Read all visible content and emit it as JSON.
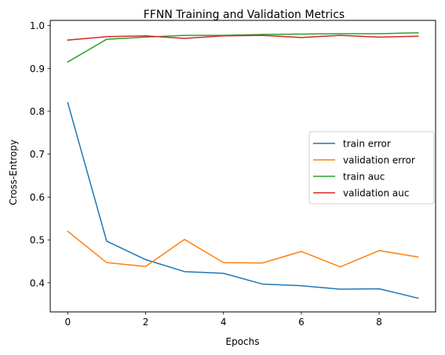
{
  "chart_data": {
    "type": "line",
    "title": "FFNN Training and Validation Metrics",
    "xlabel": "Epochs",
    "ylabel": "Cross-Entropy",
    "x": [
      0,
      1,
      2,
      3,
      4,
      5,
      6,
      7,
      8,
      9
    ],
    "xlim": [
      -0.45,
      9.45
    ],
    "ylim": [
      0.332,
      1.012
    ],
    "xticks": [
      0,
      2,
      4,
      6,
      8
    ],
    "xtick_labels": [
      "0",
      "2",
      "4",
      "6",
      "8"
    ],
    "yticks": [
      0.4,
      0.5,
      0.6,
      0.7,
      0.8,
      0.9,
      1.0
    ],
    "ytick_labels": [
      "0.4",
      "0.5",
      "0.6",
      "0.7",
      "0.8",
      "0.9",
      "1.0"
    ],
    "grid": false,
    "legend_position": "center-right",
    "series": [
      {
        "name": "train error",
        "color": "#1f77b4",
        "values": [
          0.82,
          0.497,
          0.454,
          0.426,
          0.422,
          0.397,
          0.393,
          0.385,
          0.386,
          0.364
        ]
      },
      {
        "name": "validation error",
        "color": "#ff7f0e",
        "values": [
          0.52,
          0.447,
          0.438,
          0.501,
          0.447,
          0.446,
          0.473,
          0.437,
          0.475,
          0.46
        ]
      },
      {
        "name": "train auc",
        "color": "#2ca02c",
        "values": [
          0.915,
          0.968,
          0.973,
          0.977,
          0.977,
          0.979,
          0.98,
          0.981,
          0.981,
          0.983
        ]
      },
      {
        "name": "validation auc",
        "color": "#d62728",
        "values": [
          0.966,
          0.974,
          0.976,
          0.97,
          0.976,
          0.977,
          0.972,
          0.977,
          0.973,
          0.975
        ]
      }
    ]
  }
}
